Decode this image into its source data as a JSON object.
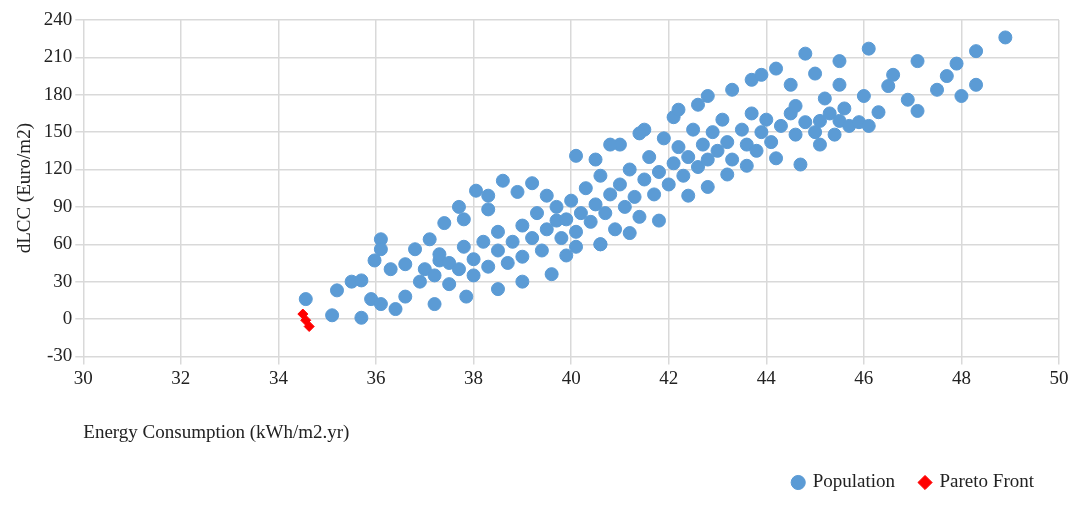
{
  "chart_data": {
    "type": "scatter",
    "xlabel": "Energy Consumption (kWh/m2.yr)",
    "ylabel": "dLCC (Euro/m2)",
    "xlim": [
      30,
      50
    ],
    "xticks": [
      30,
      32,
      34,
      36,
      38,
      40,
      42,
      44,
      46,
      48,
      50
    ],
    "ylim": [
      -30,
      240
    ],
    "yticks": [
      -30,
      0,
      30,
      60,
      90,
      120,
      150,
      180,
      210,
      240
    ],
    "grid": true,
    "legend": "bottom right",
    "series": [
      {
        "name": "Population",
        "color": "#5b9bd5",
        "marker": "circle",
        "x": [
          34.56,
          35.1,
          35.2,
          35.7,
          35.5,
          35.7,
          35.9,
          36.1,
          36.1,
          35.97,
          36.1,
          36.4,
          36.3,
          36.6,
          36.8,
          36.6,
          37.1,
          37.2,
          37.4,
          37.3,
          37.7,
          37.85,
          37.8,
          38.05,
          38.3,
          38.3,
          38.5,
          38.6,
          39.0,
          38.9,
          39.2,
          39.6,
          39.9,
          40.6,
          39.5,
          39.7,
          36.9,
          37.0,
          37.2,
          37.3,
          37.5,
          37.5,
          37.7,
          37.8,
          38.0,
          38.0,
          38.2,
          38.3,
          38.5,
          38.5,
          38.7,
          38.8,
          39.0,
          39.0,
          39.2,
          39.3,
          39.4,
          39.5,
          39.7,
          39.8,
          39.9,
          40.0,
          40.1,
          40.2,
          40.3,
          40.4,
          40.5,
          40.6,
          40.7,
          40.8,
          40.9,
          41.0,
          41.1,
          41.2,
          41.3,
          41.4,
          41.5,
          41.6,
          41.7,
          41.8,
          41.9,
          42.0,
          42.1,
          42.2,
          42.3,
          42.4,
          42.5,
          42.6,
          42.7,
          42.8,
          42.9,
          43.0,
          43.1,
          43.2,
          43.3,
          43.5,
          43.6,
          43.7,
          43.8,
          43.9,
          44.0,
          44.1,
          44.3,
          44.5,
          44.6,
          44.8,
          45.0,
          45.3,
          42.1,
          42.6,
          41.5,
          41.0,
          40.5,
          40.1,
          40.8,
          41.4,
          42.2,
          42.8,
          43.3,
          43.7,
          43.9,
          44.2,
          44.5,
          44.6,
          44.2,
          44.7,
          45.0,
          45.2,
          45.1,
          45.1,
          45.4,
          45.5,
          45.6,
          45.7,
          45.9,
          46.1,
          46.3,
          46.5,
          46.9,
          47.1,
          48.9,
          48.3,
          48.3,
          48.0,
          47.5,
          47.7,
          47.9,
          47.1,
          46.6,
          46.0,
          45.5,
          45.5,
          44.8,
          46.1,
          43.6,
          43.2,
          42.8,
          42.4,
          41.8,
          41.2,
          40.6,
          40.1
        ],
        "values": [
          16,
          3,
          23,
          1,
          30,
          31,
          16,
          64,
          56,
          47,
          12,
          8,
          40,
          44,
          56,
          18,
          64,
          12,
          77,
          47,
          90,
          18,
          80,
          103,
          99,
          88,
          24,
          111,
          30,
          102,
          109,
          36,
          51,
          60,
          99,
          79,
          30,
          40,
          35,
          52,
          45,
          28,
          40,
          58,
          48,
          35,
          62,
          42,
          55,
          70,
          45,
          62,
          75,
          50,
          65,
          85,
          55,
          72,
          90,
          65,
          80,
          95,
          70,
          85,
          105,
          78,
          92,
          115,
          85,
          100,
          72,
          108,
          90,
          120,
          98,
          82,
          112,
          130,
          100,
          118,
          145,
          108,
          125,
          138,
          115,
          130,
          152,
          122,
          140,
          128,
          150,
          135,
          160,
          142,
          128,
          152,
          140,
          165,
          135,
          150,
          160,
          142,
          155,
          165,
          148,
          158,
          150,
          165,
          162,
          172,
          152,
          140,
          128,
          131,
          140,
          149,
          168,
          179,
          184,
          192,
          196,
          201,
          188,
          171,
          129,
          124,
          197,
          177,
          140,
          159,
          148,
          159,
          169,
          155,
          158,
          155,
          166,
          187,
          176,
          207,
          226,
          215,
          188,
          179,
          184,
          195,
          205,
          167,
          196,
          179,
          188,
          207,
          213,
          217,
          123,
          116,
          106,
          99,
          79,
          69,
          60,
          58
        ]
      },
      {
        "name": "Pareto Front",
        "color": "#ff0000",
        "marker": "diamond",
        "x": [
          34.5,
          34.56,
          34.63
        ],
        "values": [
          4,
          -1,
          -6
        ]
      }
    ]
  }
}
